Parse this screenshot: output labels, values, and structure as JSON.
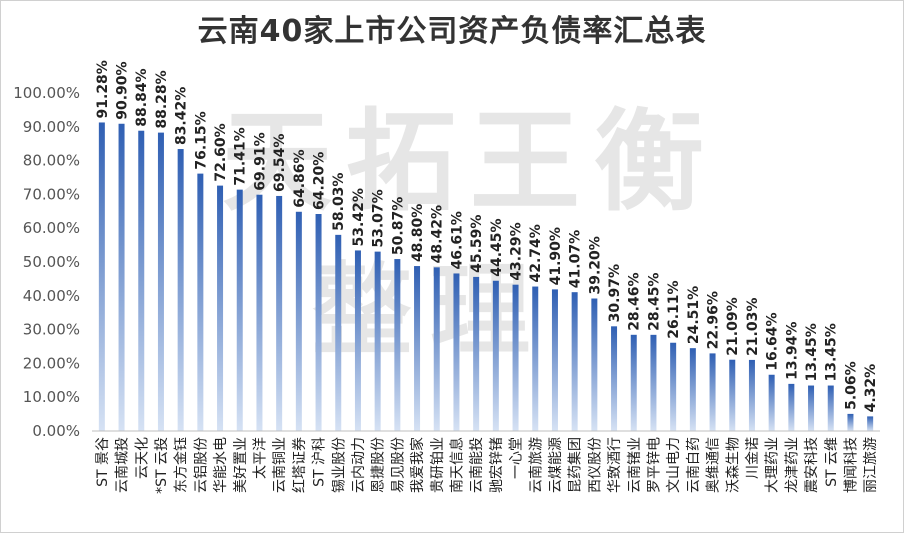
{
  "chart_data": {
    "type": "bar",
    "title": "云南40家上市公司资产负债率汇总表",
    "xlabel": "",
    "ylabel": "",
    "ylim": [
      0,
      100
    ],
    "yticks": [
      "0.00%",
      "10.00%",
      "20.00%",
      "30.00%",
      "40.00%",
      "50.00%",
      "60.00%",
      "70.00%",
      "80.00%",
      "90.00%",
      "100.00%"
    ],
    "grid": false,
    "legend": "none",
    "bar_color_top": "#2f5fb3",
    "bar_color_bottom": "#d6e2f4",
    "categories": [
      "ST 景谷",
      "云南城投",
      "云天化",
      "*ST 云投",
      "东方金钰",
      "云铝股份",
      "华能水电",
      "美好置业",
      "太平洋",
      "云南铜业",
      "红塔证券",
      "ST 沪科",
      "锡业股份",
      "云内动力",
      "恩捷股份",
      "易见股份",
      "我爱我家",
      "贵研铂业",
      "南天信息",
      "云南能投",
      "驰宏锌锗",
      "一心堂",
      "云南旅游",
      "云煤能源",
      "昆药集团",
      "西仪股份",
      "华致酒行",
      "云南锗业",
      "罗平锌电",
      "文山电力",
      "云南白药",
      "奥维通信",
      "沃森生物",
      "川金诺",
      "大理药业",
      "龙津药业",
      "震安科技",
      "ST 云维",
      "博闻科技",
      "丽江旅游"
    ],
    "values": [
      91.28,
      90.9,
      88.84,
      88.28,
      83.42,
      76.15,
      72.6,
      71.41,
      69.91,
      69.54,
      64.86,
      64.2,
      58.03,
      53.42,
      53.07,
      50.87,
      48.8,
      48.42,
      46.61,
      45.59,
      44.45,
      43.29,
      42.74,
      41.9,
      41.07,
      39.2,
      30.97,
      28.46,
      28.45,
      26.11,
      24.51,
      22.96,
      21.09,
      21.03,
      16.64,
      13.94,
      13.45,
      13.45,
      5.06,
      4.32
    ],
    "value_labels": [
      "91.28%",
      "90.90%",
      "88.84%",
      "88.28%",
      "83.42%",
      "76.15%",
      "72.60%",
      "71.41%",
      "69.91%",
      "69.54%",
      "64.86%",
      "64.20%",
      "58.03%",
      "53.42%",
      "53.07%",
      "50.87%",
      "48.80%",
      "48.42%",
      "46.61%",
      "45.59%",
      "44.45%",
      "43.29%",
      "42.74%",
      "41.90%",
      "41.07%",
      "39.20%",
      "30.97%",
      "28.46%",
      "28.45%",
      "26.11%",
      "24.51%",
      "22.96%",
      "21.09%",
      "21.03%",
      "16.64%",
      "13.94%",
      "13.45%",
      "13.45%",
      "5.06%",
      "4.32%"
    ]
  },
  "watermark": {
    "line1": "天拓王衡",
    "line2": "整理",
    "color": "#c8c8c8"
  }
}
